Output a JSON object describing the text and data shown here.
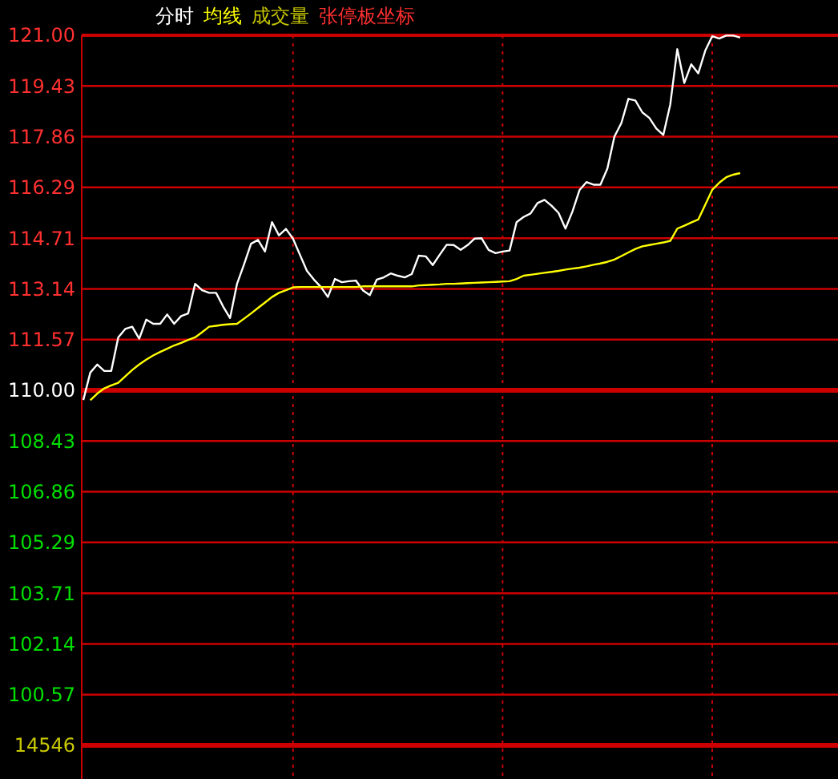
{
  "chart_data": {
    "type": "line",
    "annotations": [
      "成交量",
      "张停板坐标",
      "14546"
    ],
    "categories": [
      null,
      null,
      null,
      null,
      null,
      null,
      null,
      null,
      null,
      null,
      null,
      null,
      null,
      null,
      null,
      null,
      null,
      null,
      null,
      null,
      null,
      null,
      null,
      null,
      null,
      null,
      null,
      null,
      null,
      null,
      null,
      null,
      null,
      null,
      null,
      null,
      null,
      null,
      null,
      null,
      null,
      null,
      null,
      null,
      null,
      null,
      null,
      null,
      null,
      null,
      null,
      null,
      null,
      null,
      null,
      null,
      null,
      null,
      null,
      null,
      null,
      null,
      null,
      null,
      null,
      null,
      null,
      null,
      null,
      null,
      null,
      null,
      null,
      null,
      null,
      null,
      null,
      null,
      null,
      null,
      null,
      null,
      null,
      null,
      null,
      null,
      null,
      null,
      null,
      null,
      null,
      null,
      null,
      null,
      null,
      null,
      null,
      null,
      null,
      null,
      null,
      null,
      null,
      null,
      null,
      null,
      null,
      null,
      null
    ],
    "series": [
      {
        "name": "分时",
        "color": "#ffffff",
        "values": [
          109.7,
          110.55,
          110.8,
          110.6,
          110.6,
          111.64,
          111.9,
          111.97,
          111.6,
          112.19,
          112.06,
          112.06,
          112.35,
          112.06,
          112.3,
          112.38,
          113.3,
          113.1,
          113.02,
          113.02,
          112.6,
          112.24,
          113.3,
          113.9,
          114.54,
          114.66,
          114.3,
          115.21,
          114.8,
          115.0,
          114.7,
          114.2,
          113.7,
          113.43,
          113.2,
          112.89,
          113.45,
          113.35,
          113.38,
          113.4,
          113.1,
          112.95,
          113.43,
          113.5,
          113.62,
          113.55,
          113.5,
          113.6,
          114.17,
          114.15,
          113.88,
          114.2,
          114.51,
          114.5,
          114.35,
          114.5,
          114.7,
          114.71,
          114.35,
          114.25,
          114.3,
          114.33,
          115.21,
          115.37,
          115.48,
          115.8,
          115.9,
          115.72,
          115.5,
          115.01,
          115.54,
          116.2,
          116.45,
          116.37,
          116.37,
          116.87,
          117.86,
          118.28,
          119.03,
          118.98,
          118.61,
          118.44,
          118.11,
          117.91,
          118.86,
          120.57,
          119.52,
          120.1,
          119.82,
          120.52,
          120.97,
          120.9,
          120.99,
          120.99,
          120.93,
          null,
          null,
          null,
          null,
          null,
          null,
          null,
          null,
          null,
          null,
          null,
          null,
          null,
          null
        ]
      },
      {
        "name": "均线",
        "color": "#ffff00",
        "values": [
          null,
          109.69,
          109.9,
          110.06,
          110.15,
          110.23,
          110.43,
          110.63,
          110.8,
          110.95,
          111.08,
          111.19,
          111.29,
          111.39,
          111.47,
          111.56,
          111.64,
          111.8,
          111.97,
          112.0,
          112.03,
          112.05,
          112.06,
          112.22,
          112.38,
          112.55,
          112.72,
          112.89,
          113.02,
          113.1,
          113.19,
          113.2,
          113.2,
          113.2,
          113.2,
          113.2,
          113.2,
          113.2,
          113.2,
          113.2,
          113.22,
          113.22,
          113.22,
          113.22,
          113.22,
          113.22,
          113.22,
          113.22,
          113.25,
          113.26,
          113.27,
          113.28,
          113.3,
          113.3,
          113.31,
          113.32,
          113.33,
          113.34,
          113.35,
          113.36,
          113.37,
          113.38,
          113.45,
          113.55,
          113.58,
          113.61,
          113.64,
          113.67,
          113.7,
          113.74,
          113.77,
          113.8,
          113.84,
          113.89,
          113.93,
          113.98,
          114.05,
          114.16,
          114.27,
          114.38,
          114.46,
          114.5,
          114.54,
          114.58,
          114.63,
          115.01,
          115.1,
          115.2,
          115.29,
          115.75,
          116.21,
          116.43,
          116.6,
          116.68,
          116.73,
          null,
          null,
          null,
          null,
          null,
          null,
          null,
          null,
          null,
          null,
          null,
          null,
          null,
          null
        ]
      }
    ],
    "ylim": [
      99,
      121
    ],
    "yticks": [
      {
        "value": 121,
        "label": "121.00"
      },
      119.43,
      117.86,
      116.29,
      114.71,
      113.14,
      111.57,
      {
        "value": 110,
        "label": "110.00"
      },
      108.43,
      106.86,
      105.29,
      103.71,
      102.14,
      100.57
    ],
    "tick_labels": "y",
    "grid": true,
    "line_style": "solid",
    "ref_lines": [
      {
        "axis": "y",
        "value": 110,
        "color": "#cc0000"
      }
    ]
  }
}
